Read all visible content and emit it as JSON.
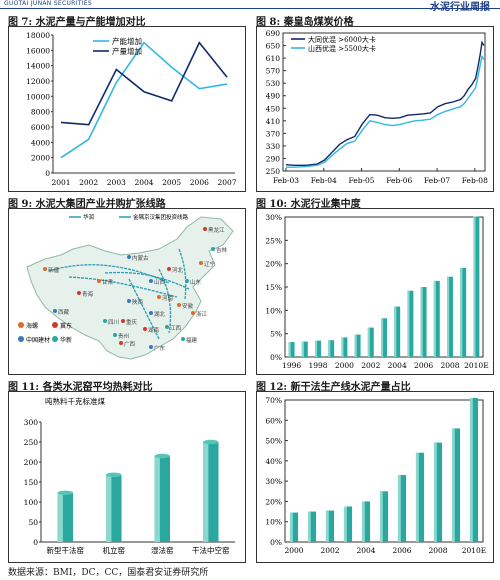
{
  "header": {
    "brand": "GUOTAI JUNAN SECURITIES",
    "report_title": "水泥行业周报"
  },
  "footer": {
    "source": "数据来源：BMI，DC，CC，国泰君安证券研究所"
  },
  "colors": {
    "dark_series": "#0f2a6b",
    "light_series": "#33b8e0",
    "bar": "#26a79f",
    "bar_light": "#8ad8cf",
    "map_land": "#e8f2ee"
  },
  "fig7": {
    "title": "图 7: 水泥产量与产能增加对比",
    "chart_data": {
      "type": "line",
      "x": [
        "2001",
        "2002",
        "2003",
        "2004",
        "2005",
        "2006",
        "2007"
      ],
      "ylim": [
        0,
        18000
      ],
      "yticks": [
        0,
        2000,
        4000,
        6000,
        8000,
        10000,
        12000,
        14000,
        16000,
        18000
      ],
      "series": [
        {
          "name": "产能增加",
          "values": [
            2000,
            4400,
            11800,
            17000,
            13800,
            11000,
            11600
          ],
          "color": "#33b8e0"
        },
        {
          "name": "产量增加",
          "values": [
            6600,
            6300,
            13500,
            10600,
            9400,
            17000,
            12500
          ],
          "color": "#0f2a6b"
        }
      ],
      "legend": "top-left"
    }
  },
  "fig8": {
    "title": "图 8: 秦皇岛煤炭价格",
    "chart_data": {
      "type": "line",
      "x_labels": [
        "Feb-03",
        "Feb-04",
        "Feb-05",
        "Feb-06",
        "Feb-07",
        "Feb-08"
      ],
      "x": [
        2003.08,
        2003.3,
        2003.6,
        2003.9,
        2004.1,
        2004.3,
        2004.5,
        2004.7,
        2004.9,
        2005.1,
        2005.3,
        2005.5,
        2005.7,
        2005.9,
        2006.1,
        2006.3,
        2006.5,
        2006.7,
        2006.9,
        2007.1,
        2007.3,
        2007.5,
        2007.7,
        2007.8,
        2007.9,
        2008.0,
        2008.1,
        2008.16,
        2008.22,
        2008.27,
        2008.32
      ],
      "xlim": [
        2003.0,
        2008.35
      ],
      "ylim": [
        250,
        690
      ],
      "yticks": [
        250,
        290,
        330,
        370,
        410,
        450,
        490,
        530,
        570,
        610,
        650,
        690
      ],
      "series": [
        {
          "name": "大同优混 >6000大卡",
          "color": "#0f2a6b",
          "values": [
            270,
            268,
            268,
            272,
            285,
            310,
            335,
            350,
            360,
            400,
            430,
            428,
            420,
            418,
            420,
            428,
            430,
            432,
            435,
            455,
            465,
            470,
            478,
            490,
            510,
            525,
            545,
            580,
            620,
            660,
            650
          ]
        },
        {
          "name": "山西优混 >5500大卡",
          "color": "#33b8e0",
          "values": [
            262,
            262,
            264,
            268,
            278,
            300,
            320,
            338,
            345,
            380,
            410,
            405,
            398,
            395,
            398,
            405,
            410,
            412,
            415,
            430,
            440,
            448,
            455,
            465,
            482,
            498,
            515,
            550,
            585,
            615,
            605
          ]
        }
      ],
      "legend": "top-left"
    }
  },
  "fig9": {
    "title": "图 9: 水泥大集团产业并购扩张线路",
    "legend_top": [
      "华润",
      "金隅京汉集团投资线路"
    ],
    "legend_bottom": [
      "海螺",
      "冀东",
      "中国建材",
      "华新"
    ],
    "cities": [
      "新疆",
      "西藏",
      "青海",
      "四川",
      "甘肃",
      "内蒙古",
      "黑龙江",
      "吉林",
      "辽宁",
      "山西",
      "河北",
      "山东",
      "河南",
      "湖北",
      "湖南",
      "江西",
      "浙江",
      "广东",
      "广西",
      "福建",
      "安徽",
      "陕西",
      "重庆",
      "贵州"
    ]
  },
  "fig10": {
    "title": "图 10: 水泥行业集中度",
    "chart_data": {
      "type": "bar",
      "categories": [
        "1996",
        "1997",
        "1998",
        "1999",
        "2000",
        "2001",
        "2002",
        "2003",
        "2004",
        "2005",
        "2006",
        "2007",
        "2008",
        "2009",
        "2010E"
      ],
      "x_labels": [
        "1996",
        "1998",
        "2000",
        "2002",
        "2004",
        "2006",
        "2008",
        "2010E"
      ],
      "values": [
        3.2,
        3.3,
        3.5,
        3.6,
        4.2,
        4.8,
        6.3,
        8.3,
        10.8,
        14.2,
        15.0,
        16.3,
        17.2,
        19.1,
        30.1
      ],
      "ylim": [
        0,
        30
      ],
      "yticks": [
        "0%",
        "5%",
        "10%",
        "15%",
        "20%",
        "25%",
        "30%"
      ]
    }
  },
  "fig11": {
    "title": "图 11: 各类水泥窑平均热耗对比",
    "unit_label": "吨熟料千克标准煤",
    "chart_data": {
      "type": "bar",
      "categories": [
        "新型干法窑",
        "机立窑",
        "湿法窑",
        "干法中空窑"
      ],
      "values": [
        123,
        168,
        215,
        250
      ],
      "ylim": [
        0,
        300
      ],
      "yticks": [
        0,
        50,
        100,
        150,
        200,
        250,
        300
      ]
    }
  },
  "fig12": {
    "title": "图 12: 新干法生产线水泥产量占比",
    "chart_data": {
      "type": "bar",
      "categories": [
        "2000",
        "2001",
        "2002",
        "2003",
        "2004",
        "2005",
        "2006",
        "2007",
        "2008",
        "2009",
        "2010E"
      ],
      "x_labels": [
        "2000",
        "2002",
        "2004",
        "2006",
        "2008",
        "2010E"
      ],
      "values": [
        14.5,
        15,
        15.5,
        17.5,
        20,
        25,
        33,
        44,
        49,
        56,
        71
      ],
      "ylim": [
        0,
        70
      ],
      "yticks": [
        "0%",
        "10%",
        "20%",
        "30%",
        "40%",
        "50%",
        "60%",
        "70%"
      ]
    }
  }
}
